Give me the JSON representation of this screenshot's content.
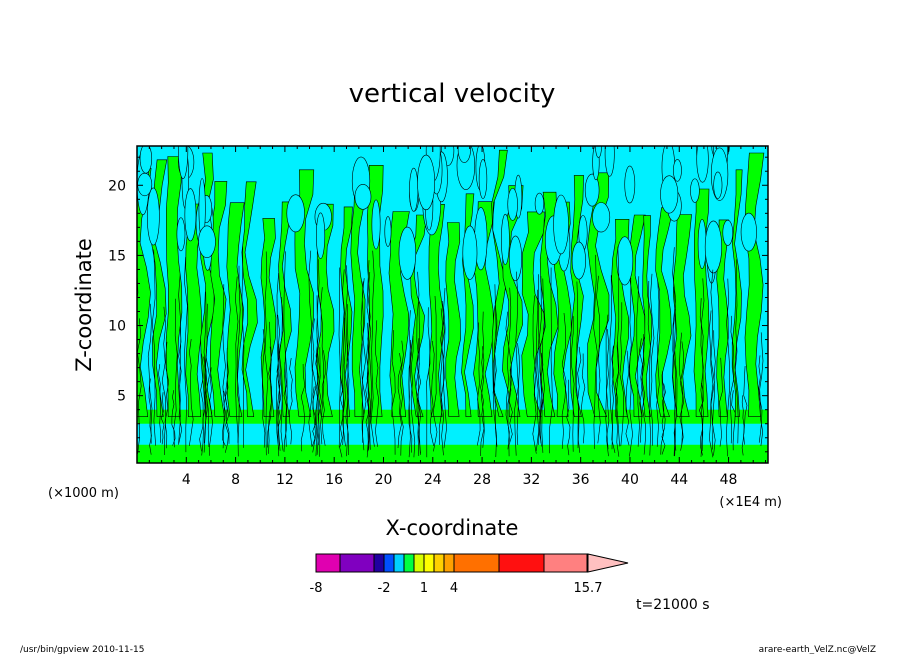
{
  "chart_data": {
    "type": "heatmap",
    "title": "vertical velocity",
    "xlabel": "X-coordinate",
    "ylabel": "Z-coordinate",
    "x_unit_label": "(×1000 m)",
    "x_unit_right": "(×1E4 m)",
    "x_ticks": [
      "4",
      "8",
      "12",
      "16",
      "20",
      "24",
      "28",
      "32",
      "36",
      "40",
      "44",
      "48"
    ],
    "x_tick_values": [
      4,
      8,
      12,
      16,
      20,
      24,
      28,
      32,
      36,
      40,
      44,
      48
    ],
    "xlim": [
      0,
      51.2
    ],
    "y_ticks": [
      "5",
      "10",
      "15",
      "20"
    ],
    "y_tick_values": [
      5,
      10,
      15,
      20
    ],
    "ylim": [
      0.2,
      22.8
    ],
    "colorbar": {
      "levels": [
        -8,
        -6,
        -4,
        -2,
        -1,
        0,
        0.5,
        1,
        2,
        3,
        4,
        7,
        10,
        13.5,
        15.7
      ],
      "colors": [
        "#e000b0",
        "#8000c0",
        "#2000a0",
        "#0050ff",
        "#00d0ff",
        "#00ff40",
        "#d8ff00",
        "#ffff00",
        "#ffd000",
        "#ffa000",
        "#ff7000",
        "#ff1010",
        "#ff8080",
        "#ffc0c0"
      ],
      "labels": [
        "-8",
        "-2",
        "1",
        "4",
        "15.7"
      ],
      "label_values": [
        -8,
        -2,
        1,
        4,
        15.7
      ]
    },
    "field_colors": {
      "positive": "#00ff00",
      "negative": "#00f0ff"
    },
    "time_label": "t=21000  s"
  },
  "footer": {
    "left": "/usr/bin/gpview   2010-11-15",
    "right": "arare-earth_VelZ.nc@VelZ"
  }
}
